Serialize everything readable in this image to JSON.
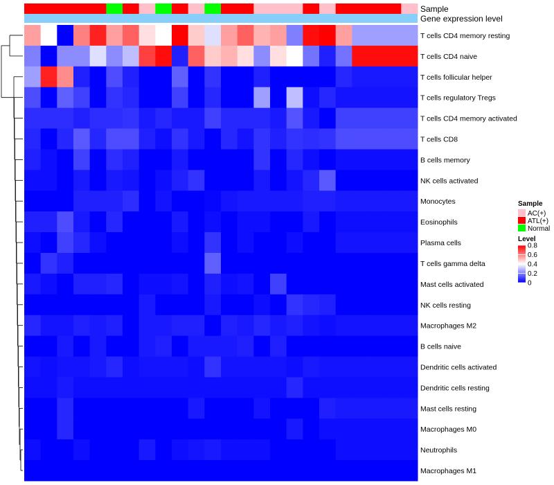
{
  "chart_data": {
    "type": "heatmap",
    "title": "",
    "column_annotations": [
      {
        "name": "Sample",
        "values": [
          "ATL(+)",
          "ATL(+)",
          "ATL(+)",
          "ATL(+)",
          "ATL(+)",
          "Normal",
          "ATL(+)",
          "AC(+)",
          "Normal",
          "ATL(+)",
          "AC(+)",
          "Normal",
          "ATL(+)",
          "ATL(+)",
          "AC(+)",
          "AC(+)",
          "AC(+)",
          "ATL(+)",
          "AC(+)",
          "ATL(+)",
          "ATL(+)",
          "ATL(+)",
          "ATL(+)",
          "AC(+)"
        ]
      },
      {
        "name": "Gene expression level",
        "values": []
      }
    ],
    "rows": [
      "T cells CD4 memory resting",
      "T cells CD4 naive",
      "T cells follicular helper",
      "T cells regulatory  Tregs",
      "T cells CD4 memory activated",
      "T cells CD8",
      "B cells memory",
      "NK cells activated",
      "Monocytes",
      "Eosinophils",
      "Plasma cells",
      "T cells gamma delta",
      "Mast cells activated",
      "NK cells resting",
      "Macrophages M2",
      "B cells naive",
      "Dendritic cells activated",
      "Dendritic cells resting",
      "Mast cells resting",
      "Macrophages M0",
      "Neutrophils",
      "Macrophages M1"
    ],
    "values": [
      [
        0.55,
        0.4,
        0.0,
        0.6,
        0.75,
        0.55,
        0.65,
        0.45,
        0.4,
        0.8,
        0.48,
        0.35,
        0.55,
        0.65,
        0.52,
        0.55,
        0.2,
        0.78,
        0.8,
        0.55,
        0.25,
        0.25,
        0.25,
        0.25
      ],
      [
        0.2,
        0.0,
        0.22,
        0.22,
        0.35,
        0.22,
        0.3,
        0.7,
        0.78,
        0.05,
        0.65,
        0.48,
        0.52,
        0.45,
        0.22,
        0.45,
        0.4,
        0.18,
        0.05,
        0.18,
        0.78,
        0.78,
        0.78,
        0.78
      ],
      [
        0.25,
        0.75,
        0.58,
        0.05,
        0.0,
        0.12,
        0.05,
        0.0,
        0.0,
        0.15,
        0.0,
        0.08,
        0.0,
        0.0,
        0.05,
        0.0,
        0.0,
        0.0,
        0.0,
        0.06,
        0.04,
        0.04,
        0.04,
        0.04
      ],
      [
        0.12,
        0.0,
        0.15,
        0.1,
        0.0,
        0.08,
        0.06,
        0.0,
        0.0,
        0.1,
        0.0,
        0.06,
        0.0,
        0.0,
        0.25,
        0.0,
        0.3,
        0.02,
        0.06,
        0.03,
        0.03,
        0.03,
        0.03,
        0.03
      ],
      [
        0.07,
        0.07,
        0.07,
        0.05,
        0.07,
        0.07,
        0.08,
        0.04,
        0.06,
        0.04,
        0.04,
        0.1,
        0.06,
        0.06,
        0.06,
        0.04,
        0.13,
        0.04,
        0.0,
        0.1,
        0.1,
        0.1,
        0.1,
        0.1
      ],
      [
        0.06,
        0.0,
        0.06,
        0.14,
        0.06,
        0.12,
        0.12,
        0.05,
        0.02,
        0.08,
        0.04,
        0.0,
        0.06,
        0.03,
        0.08,
        0.05,
        0.08,
        0.07,
        0.08,
        0.12,
        0.12,
        0.12,
        0.12,
        0.12
      ],
      [
        0.05,
        0.02,
        0.0,
        0.1,
        0.0,
        0.07,
        0.05,
        0.0,
        0.0,
        0.04,
        0.0,
        0.0,
        0.0,
        0.0,
        0.08,
        0.0,
        0.06,
        0.02,
        0.0,
        0.02,
        0.02,
        0.02,
        0.02,
        0.02
      ],
      [
        0.02,
        0.02,
        0.0,
        0.04,
        0.0,
        0.04,
        0.03,
        0.0,
        0.02,
        0.05,
        0.08,
        0.0,
        0.0,
        0.0,
        0.04,
        0.0,
        0.03,
        0.06,
        0.14,
        0.0,
        0.0,
        0.0,
        0.0,
        0.0
      ],
      [
        0.0,
        0.0,
        0.0,
        0.05,
        0.05,
        0.05,
        0.07,
        0.0,
        0.03,
        0.0,
        0.0,
        0.01,
        0.03,
        0.04,
        0.04,
        0.04,
        0.04,
        0.05,
        0.05,
        0.04,
        0.04,
        0.04,
        0.04,
        0.04
      ],
      [
        0.05,
        0.05,
        0.12,
        0.04,
        0.0,
        0.06,
        0.0,
        0.0,
        0.0,
        0.04,
        0.0,
        0.02,
        0.0,
        0.02,
        0.02,
        0.0,
        0.0,
        0.04,
        0.0,
        0.02,
        0.02,
        0.02,
        0.02,
        0.02
      ],
      [
        0.02,
        0.0,
        0.1,
        0.06,
        0.02,
        0.0,
        0.0,
        0.0,
        0.0,
        0.02,
        0.0,
        0.08,
        0.0,
        0.02,
        0.0,
        0.0,
        0.02,
        0.0,
        0.0,
        0.03,
        0.03,
        0.03,
        0.03,
        0.03
      ],
      [
        0.0,
        0.08,
        0.05,
        0.0,
        0.0,
        0.0,
        0.0,
        0.0,
        0.0,
        0.0,
        0.0,
        0.15,
        0.0,
        0.0,
        0.0,
        0.0,
        0.0,
        0.0,
        0.0,
        0.0,
        0.0,
        0.0,
        0.0,
        0.0
      ],
      [
        0.04,
        0.02,
        0.0,
        0.05,
        0.05,
        0.06,
        0.0,
        0.02,
        0.02,
        0.03,
        0.0,
        0.05,
        0.02,
        0.03,
        0.0,
        0.1,
        0.0,
        0.0,
        0.0,
        0.0,
        0.0,
        0.0,
        0.0,
        0.0
      ],
      [
        0.0,
        0.0,
        0.0,
        0.0,
        0.0,
        0.0,
        0.0,
        0.04,
        0.0,
        0.0,
        0.0,
        0.04,
        0.0,
        0.0,
        0.02,
        0.0,
        0.08,
        0.06,
        0.05,
        0.0,
        0.0,
        0.0,
        0.0,
        0.0
      ],
      [
        0.06,
        0.03,
        0.03,
        0.05,
        0.04,
        0.05,
        0.0,
        0.04,
        0.04,
        0.05,
        0.05,
        0.0,
        0.05,
        0.04,
        0.06,
        0.04,
        0.05,
        0.03,
        0.02,
        0.03,
        0.03,
        0.03,
        0.03,
        0.03
      ],
      [
        0.0,
        0.0,
        0.04,
        0.0,
        0.04,
        0.0,
        0.0,
        0.04,
        0.05,
        0.0,
        0.04,
        0.04,
        0.04,
        0.05,
        0.0,
        0.05,
        0.0,
        0.0,
        0.0,
        0.0,
        0.0,
        0.0,
        0.0,
        0.0
      ],
      [
        0.03,
        0.02,
        0.03,
        0.03,
        0.04,
        0.06,
        0.02,
        0.03,
        0.03,
        0.03,
        0.02,
        0.08,
        0.03,
        0.03,
        0.03,
        0.03,
        0.02,
        0.04,
        0.03,
        0.03,
        0.03,
        0.03,
        0.03,
        0.03
      ],
      [
        0.02,
        0.02,
        0.04,
        0.02,
        0.02,
        0.02,
        0.02,
        0.02,
        0.02,
        0.02,
        0.02,
        0.02,
        0.02,
        0.02,
        0.02,
        0.02,
        0.06,
        0.02,
        0.02,
        0.02,
        0.02,
        0.02,
        0.02,
        0.02
      ],
      [
        0.0,
        0.0,
        0.06,
        0.0,
        0.0,
        0.0,
        0.0,
        0.0,
        0.0,
        0.0,
        0.04,
        0.0,
        0.0,
        0.0,
        0.03,
        0.0,
        0.0,
        0.0,
        0.05,
        0.04,
        0.04,
        0.04,
        0.04,
        0.04
      ],
      [
        0.0,
        0.0,
        0.06,
        0.0,
        0.0,
        0.0,
        0.0,
        0.0,
        0.0,
        0.0,
        0.0,
        0.0,
        0.0,
        0.0,
        0.0,
        0.0,
        0.04,
        0.0,
        0.02,
        0.02,
        0.02,
        0.02,
        0.02,
        0.02
      ],
      [
        0.02,
        0.0,
        0.0,
        0.02,
        0.0,
        0.0,
        0.0,
        0.04,
        0.0,
        0.02,
        0.03,
        0.04,
        0.02,
        0.02,
        0.02,
        0.0,
        0.0,
        0.0,
        0.0,
        0.02,
        0.02,
        0.02,
        0.02,
        0.02
      ],
      [
        0.0,
        0.0,
        0.0,
        0.0,
        0.0,
        0.0,
        0.0,
        0.0,
        0.0,
        0.0,
        0.0,
        0.0,
        0.0,
        0.0,
        0.0,
        0.0,
        0.0,
        0.0,
        0.0,
        0.0,
        0.0,
        0.0,
        0.0,
        0.0
      ]
    ],
    "legend": {
      "sample": {
        "title": "Sample",
        "entries": [
          {
            "label": "AC(+)",
            "color": "#FFC0CB"
          },
          {
            "label": "ATL(+)",
            "color": "#FF0000"
          },
          {
            "label": "Normal",
            "color": "#00FF00"
          }
        ]
      },
      "level": {
        "title": "Level",
        "ticks": [
          "0.8",
          "0.6",
          "0.4",
          "0.2",
          "0"
        ],
        "tick_values": [
          0.8,
          0.6,
          0.4,
          0.2,
          0.0
        ],
        "range": [
          0,
          0.8
        ],
        "colors": [
          "#0000FF",
          "#FFFFFF",
          "#FF0000"
        ]
      }
    },
    "annotation_colors": {
      "Sample": {
        "AC(+)": "#FFC0CB",
        "ATL(+)": "#FF0000",
        "Normal": "#00FF00"
      },
      "Gene expression level": "#87CEFA"
    }
  }
}
